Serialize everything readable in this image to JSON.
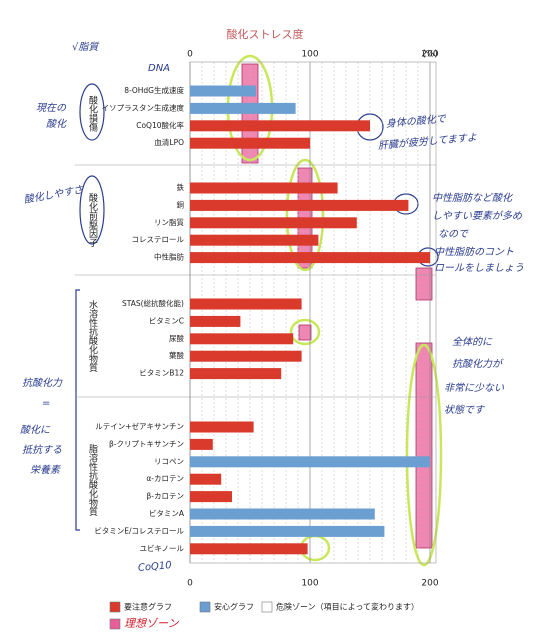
{
  "chart_data": {
    "type": "bar",
    "orientation": "horizontal",
    "title": "酸化ストレス度",
    "unit_label": "(%)",
    "xlim": [
      0,
      200
    ],
    "xticks": [
      0,
      100,
      200
    ],
    "grid": true,
    "groups": [
      {
        "name": "酸化損傷",
        "categories": [
          "8-OHdG生成速度",
          "イソプラスタン生成速度",
          "CoQ10酸化率",
          "血清LPO"
        ],
        "values": [
          55,
          88,
          150,
          100
        ],
        "colors": [
          "#6b9fd1",
          "#6b9fd1",
          "#d93a2b",
          "#d93a2b"
        ]
      },
      {
        "name": "酸化前駆因子",
        "categories": [
          "鉄",
          "銅",
          "リン脂質",
          "コレステロール",
          "中性脂肪"
        ],
        "values": [
          123,
          182,
          139,
          107,
          200
        ],
        "colors": [
          "#d93a2b",
          "#d93a2b",
          "#d93a2b",
          "#d93a2b",
          "#d93a2b"
        ]
      },
      {
        "name": "水溶性抗酸化物質",
        "categories": [
          "STAS(総抗酸化能)",
          "ビタミンC",
          "尿酸",
          "葉酸",
          "ビタミンB12"
        ],
        "values": [
          93,
          42,
          86,
          93,
          76
        ],
        "colors": [
          "#d93a2b",
          "#d93a2b",
          "#d93a2b",
          "#d93a2b",
          "#d93a2b"
        ]
      },
      {
        "name": "脂溶性抗酸化物質",
        "categories": [
          "ルテイン+ゼアキサンチン",
          "β-クリプトキサンチン",
          "リコペン",
          "α-カロテン",
          "β-カロテン",
          "ビタミンA",
          "ビタミンE/コレステロール",
          "ユビキノール"
        ],
        "values": [
          53,
          19,
          200,
          26,
          35,
          154,
          162,
          98
        ],
        "colors": [
          "#d93a2b",
          "#d93a2b",
          "#6b9fd1",
          "#d93a2b",
          "#d93a2b",
          "#6b9fd1",
          "#6b9fd1",
          "#d93a2b"
        ]
      }
    ],
    "legend": [
      {
        "label": "要注意グラフ",
        "color": "#d93a2b"
      },
      {
        "label": "安心グラフ",
        "color": "#6b9fd1"
      },
      {
        "label": "危険ゾーン（項目によって変わります）",
        "color": "#ffffff"
      },
      {
        "label": "理想ゾーン",
        "color": "#e8609a"
      }
    ],
    "annotations": [
      "√脂質",
      "DNA",
      "現在の",
      "酸化",
      "酸化しやすさ",
      "抗酸化力",
      "=",
      "酸化に",
      "抵抗する",
      "栄養素",
      "身体の酸化で",
      "肝臓が疲労してますよ",
      "中性脂肪など酸化",
      "しやすい要素が多め",
      "なので",
      "中性脂肪のコント",
      "ロールをしましょう",
      "全体的に",
      "抗酸化力が",
      "非常に少ない",
      "状態です",
      "CoQ10"
    ]
  }
}
